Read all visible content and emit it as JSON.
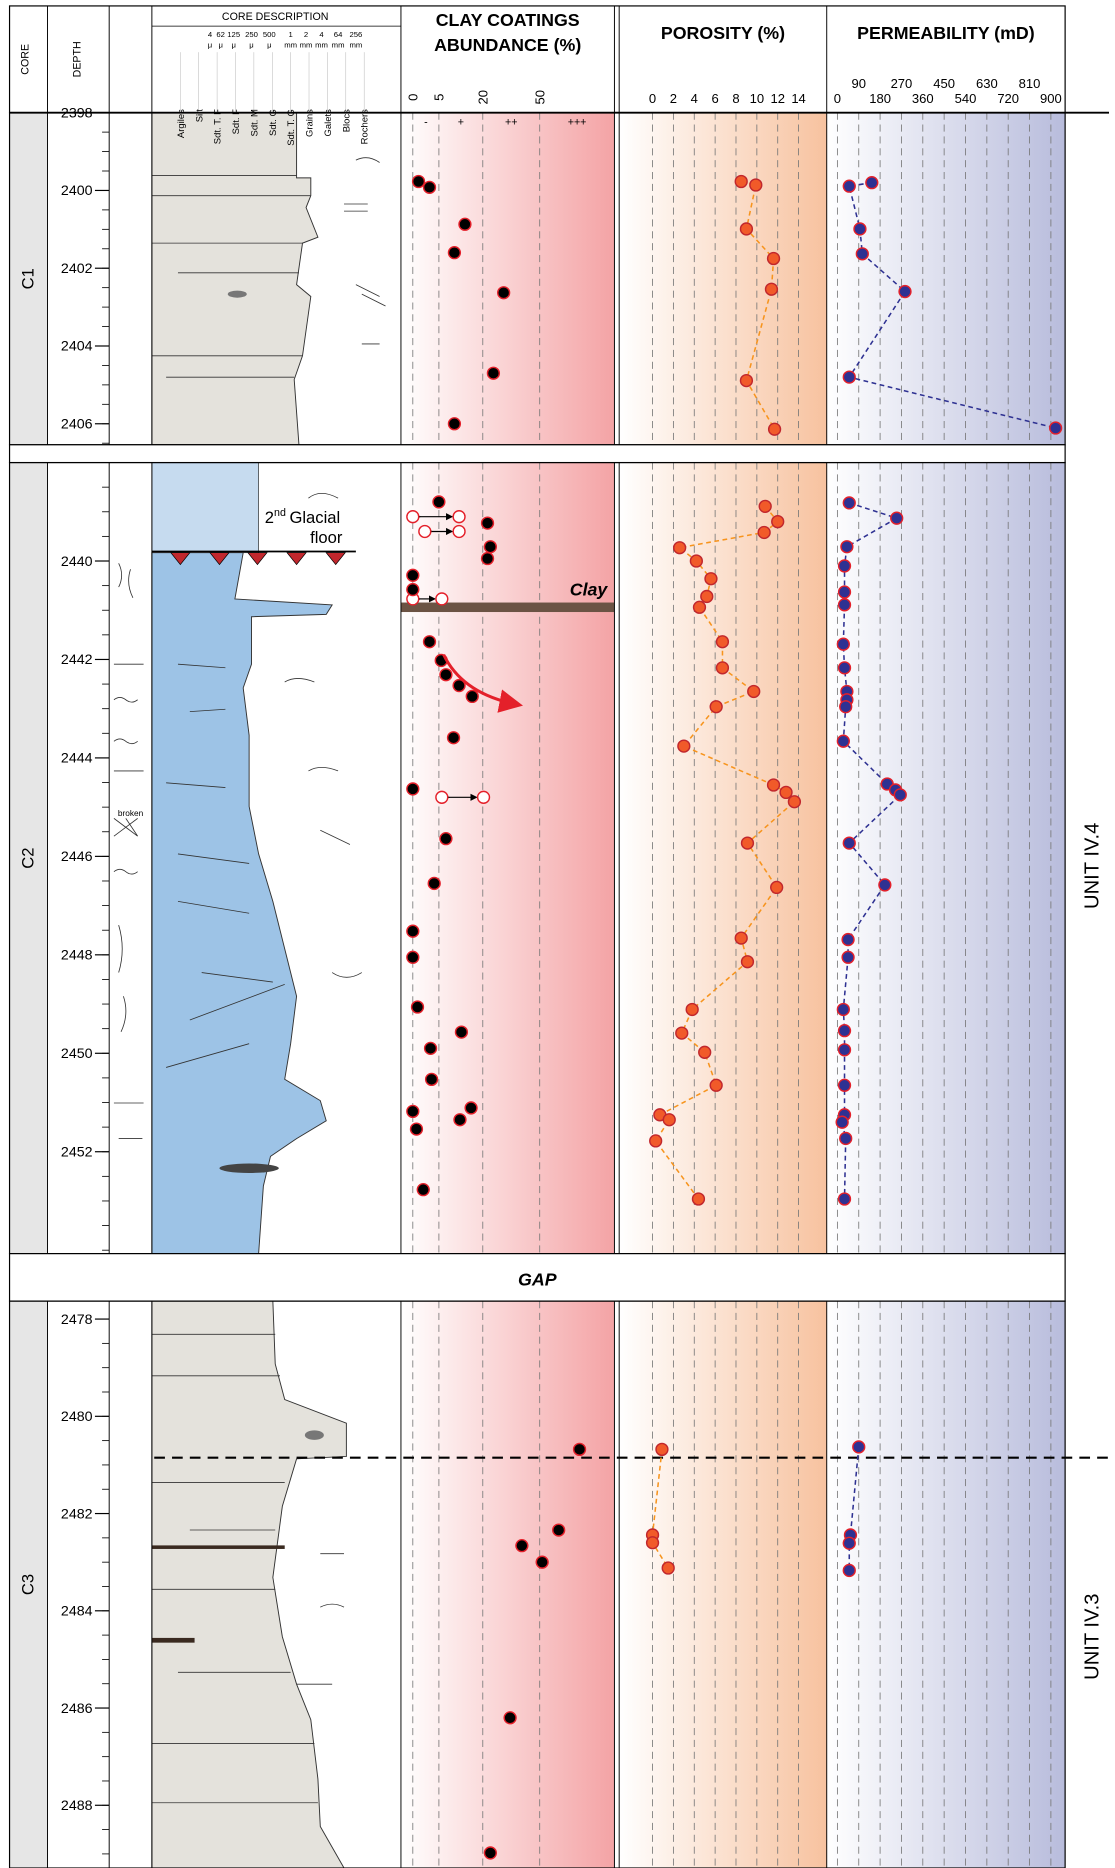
{
  "chart_data": {
    "type": "well-log",
    "core_label": "CORE",
    "depth_label": "DEPTH",
    "description": {
      "title": "CORE DESCRIPTION",
      "grain_sizes": [
        "4",
        "62",
        "125",
        "250",
        "500",
        "1",
        "2",
        "4",
        "64",
        "256"
      ],
      "grain_units": [
        "μ",
        "μ",
        "μ",
        "μ",
        "μ",
        "mm",
        "mm",
        "mm",
        "mm",
        "mm"
      ],
      "grain_classes": [
        "Argiles",
        "Silt",
        "Sdt. T. F",
        "Sdt. F",
        "Sdt. M",
        "Sdt. G",
        "Sdt. T. G",
        "Grains",
        "Galets",
        "Blocs",
        "Rochers"
      ]
    },
    "cores": [
      {
        "name": "C1",
        "ylim": [
          2398,
          2406.54
        ],
        "yticks": [
          2398,
          2400,
          2402,
          2404,
          2406
        ]
      },
      {
        "name": "C2",
        "ylim": [
          2438,
          2454.07
        ],
        "yticks": [
          2440,
          2442,
          2444,
          2446,
          2448,
          2450,
          2452
        ]
      },
      {
        "name": "C3",
        "ylim": [
          2477.63,
          2489.29
        ],
        "yticks": [
          2478,
          2480,
          2482,
          2484,
          2486,
          2488
        ]
      }
    ],
    "gap_label": "GAP",
    "units": [
      "UNIT IV.4",
      "UNIT IV.3"
    ],
    "unit_boundary": 2480.85,
    "annotations": {
      "glacial_number": "2",
      "glacial_suffix": "nd",
      "glacial_text": "Glacial",
      "glacial_text2": "floor",
      "clay": "Clay",
      "broken": "broken"
    },
    "tracks": [
      {
        "title": [
          "CLAY COATINGS",
          "ABUNDANCE (%)"
        ],
        "color": "#e4202a",
        "background": "#f4a3a5",
        "marker_color": "#000000",
        "xlim": [
          -2.3,
          89.4
        ],
        "xticks": [
          0,
          5,
          20,
          50
        ],
        "abundance_labels": [
          "-",
          "+",
          "++",
          "+++"
        ],
        "data": [
          {
            "depth": [
              2399.77,
              2399.92,
              2400.87,
              2401.6,
              2402.63,
              2404.7,
              2406.0
            ],
            "values": [
              1.1,
              3.2,
              13.9,
              10.3,
              31,
              25.6,
              10.3
            ]
          },
          {
            "depth": [
              2438.8,
              2439.23,
              2439.71,
              2439.95,
              2440.29,
              2440.58,
              2441.64,
              2442.02,
              2442.31,
              2442.53,
              2442.75,
              2443.59,
              2444.63,
              2445.64,
              2446.55,
              2447.52,
              2448.05,
              2449.06,
              2449.57,
              2449.9,
              2450.53,
              2451.11,
              2451.18,
              2451.35,
              2451.54,
              2452.77
            ],
            "values": [
              5,
              22.5,
              24,
              22.5,
              0,
              0,
              3.2,
              5.8,
              7.4,
              11.9,
              16.4,
              10,
              0,
              7.4,
              4.1,
              0,
              0,
              0.9,
              12.7,
              3.4,
              3.6,
              16,
              0,
              12.2,
              0.7,
              2
            ],
            "range_depth": [
              2439.1,
              2439.4,
              2440.77,
              2444.8
            ],
            "range_min": [
              0,
              2.3,
              0,
              6
            ],
            "range_max": [
              11.9,
              11.9,
              6,
              20.4
            ]
          },
          {
            "depth": [
              2480.68,
              2482.34,
              2482.66,
              2483.0,
              2486.2,
              2488.98
            ],
            "values": [
              71,
              60,
              40.6,
              51.3,
              34.4,
              24
            ]
          }
        ]
      },
      {
        "title": [
          "POROSITY (%)"
        ],
        "color": "#f7941d",
        "background": "#f7c29f",
        "marker_color": "#f15a29",
        "line_color": "#f7941d",
        "xlim": [
          -3.2,
          16.7
        ],
        "xticks": [
          0,
          2,
          4,
          6,
          8,
          10,
          12,
          14
        ],
        "data": [
          {
            "depth": [
              2399.77,
              2399.86,
              2400.99,
              2401.75,
              2402.54,
              2404.89,
              2406.14
            ],
            "values": [
              8.5,
              9.9,
              9.0,
              11.6,
              11.4,
              9.0,
              11.7
            ]
          },
          {
            "depth": [
              2438.89,
              2439.2,
              2439.42,
              2439.73,
              2440.0,
              2440.36,
              2440.72,
              2440.94,
              2441.64,
              2442.17,
              2442.65,
              2442.96,
              2443.76,
              2444.55,
              2444.7,
              2444.89,
              2445.73,
              2446.63,
              2447.66,
              2448.14,
              2449.11,
              2449.59,
              2449.98,
              2450.65,
              2451.25,
              2451.35,
              2451.78,
              2452.96
            ],
            "values": [
              10.8,
              12.0,
              10.7,
              2.6,
              4.2,
              5.6,
              5.2,
              4.5,
              6.7,
              6.7,
              9.7,
              6.1,
              3.0,
              11.6,
              12.8,
              13.6,
              9.1,
              11.9,
              8.5,
              9.1,
              3.8,
              2.8,
              5.0,
              6.1,
              0.7,
              1.6,
              0.3,
              4.4
            ]
          },
          {
            "depth": [
              2480.68,
              2482.44,
              2482.6,
              2483.12
            ],
            "values": [
              0.9,
              0,
              0,
              1.5
            ]
          }
        ]
      },
      {
        "title": [
          "PERMEABILITY (mD)"
        ],
        "color": "#2e3192",
        "background": "#b8bcdc",
        "marker_color": "#2e3192",
        "line_color": "#2e3192",
        "xlim": [
          -45,
          960
        ],
        "xticks": [
          0,
          90,
          180,
          270,
          360,
          450,
          540,
          630,
          720,
          810,
          900
        ],
        "data": [
          {
            "depth": [
              2399.8,
              2399.89,
              2400.99,
              2401.63,
              2402.6,
              2404.8,
              2406.11
            ],
            "values": [
              145,
              50,
              95,
              105,
              285,
              50,
              920
            ]
          },
          {
            "depth": [
              2438.82,
              2439.13,
              2439.71,
              2440.1,
              2440.63,
              2440.89,
              2441.69,
              2442.17,
              2442.65,
              2442.82,
              2442.96,
              2443.66,
              2444.53,
              2444.65,
              2444.75,
              2445.73,
              2446.58,
              2447.69,
              2448.05,
              2449.11,
              2449.54,
              2449.93,
              2450.65,
              2451.25,
              2451.4,
              2451.73,
              2452.96
            ],
            "values": [
              50,
              250,
              40,
              30,
              30,
              30,
              25,
              30,
              40,
              40,
              35,
              25,
              210,
              245,
              265,
              50,
              200,
              45,
              45,
              25,
              30,
              30,
              30,
              30,
              20,
              35,
              30
            ]
          },
          {
            "depth": [
              2480.63,
              2482.44,
              2482.61,
              2483.17
            ],
            "values": [
              90,
              55,
              50,
              50
            ]
          }
        ]
      }
    ]
  }
}
